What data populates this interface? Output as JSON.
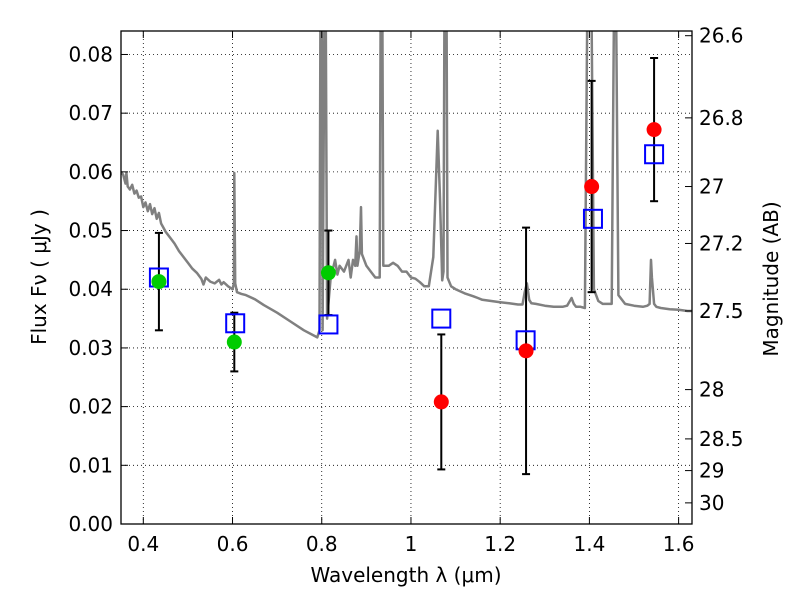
{
  "chart_data": {
    "type": "scatter",
    "title": "",
    "xlabel": "Wavelength  λ (μm)",
    "ylabel": "Flux  Fν  ( μJy )",
    "ylabel_right": "Magnitude (AB)",
    "xlim": [
      0.35,
      1.63
    ],
    "ylim": [
      0.0,
      0.084
    ],
    "grid": true,
    "x_ticks": [
      0.4,
      0.6,
      0.8,
      1.0,
      1.2,
      1.4,
      1.6
    ],
    "x_tick_labels": [
      "0.4",
      "0.6",
      "0.8",
      "1",
      "1.2",
      "1.4",
      "1.6"
    ],
    "y_ticks": [
      0.0,
      0.01,
      0.02,
      0.03,
      0.04,
      0.05,
      0.06,
      0.07,
      0.08
    ],
    "y_tick_labels": [
      "0.00",
      "0.01",
      "0.02",
      "0.03",
      "0.04",
      "0.05",
      "0.06",
      "0.07",
      "0.08"
    ],
    "mag_ticks": [
      {
        "flux": 0.0832,
        "label": "26.6"
      },
      {
        "flux": 0.0692,
        "label": "26.8"
      },
      {
        "flux": 0.0575,
        "label": "27"
      },
      {
        "flux": 0.0478,
        "label": "27.2"
      },
      {
        "flux": 0.0363,
        "label": "27.5"
      },
      {
        "flux": 0.0229,
        "label": "28"
      },
      {
        "flux": 0.0145,
        "label": "28.5"
      },
      {
        "flux": 0.0091,
        "label": "29"
      },
      {
        "flux": 0.0036,
        "label": "30"
      }
    ],
    "series": [
      {
        "name": "model SED",
        "kind": "line",
        "color": "#808080",
        "points": [
          [
            0.35,
            0.06
          ],
          [
            0.355,
            0.0595
          ],
          [
            0.36,
            0.058
          ],
          [
            0.362,
            0.0598
          ],
          [
            0.365,
            0.0575
          ],
          [
            0.37,
            0.057
          ],
          [
            0.375,
            0.0578
          ],
          [
            0.38,
            0.0563
          ],
          [
            0.385,
            0.0568
          ],
          [
            0.39,
            0.0556
          ],
          [
            0.395,
            0.0558
          ],
          [
            0.4,
            0.054
          ],
          [
            0.405,
            0.0548
          ],
          [
            0.41,
            0.0533
          ],
          [
            0.415,
            0.0545
          ],
          [
            0.42,
            0.0528
          ],
          [
            0.425,
            0.0538
          ],
          [
            0.43,
            0.052
          ],
          [
            0.435,
            0.053
          ],
          [
            0.44,
            0.0512
          ],
          [
            0.445,
            0.0505
          ],
          [
            0.45,
            0.0498
          ],
          [
            0.46,
            0.0488
          ],
          [
            0.47,
            0.0478
          ],
          [
            0.48,
            0.0465
          ],
          [
            0.49,
            0.0455
          ],
          [
            0.5,
            0.0445
          ],
          [
            0.51,
            0.0435
          ],
          [
            0.52,
            0.0428
          ],
          [
            0.53,
            0.0418
          ],
          [
            0.535,
            0.0408
          ],
          [
            0.54,
            0.042
          ],
          [
            0.55,
            0.0413
          ],
          [
            0.56,
            0.041
          ],
          [
            0.57,
            0.0416
          ],
          [
            0.575,
            0.0408
          ],
          [
            0.58,
            0.0412
          ],
          [
            0.59,
            0.0405
          ],
          [
            0.6,
            0.04
          ],
          [
            0.603,
            0.041
          ],
          [
            0.604,
            0.0598
          ],
          [
            0.606,
            0.041
          ],
          [
            0.61,
            0.0395
          ],
          [
            0.62,
            0.0392
          ],
          [
            0.63,
            0.039
          ],
          [
            0.65,
            0.0383
          ],
          [
            0.67,
            0.0373
          ],
          [
            0.7,
            0.036
          ],
          [
            0.73,
            0.0345
          ],
          [
            0.76,
            0.033
          ],
          [
            0.78,
            0.0322
          ],
          [
            0.79,
            0.0318
          ],
          [
            0.795,
            0.033
          ],
          [
            0.797,
            0.086
          ],
          [
            0.8,
            0.086
          ],
          [
            0.802,
            0.033
          ],
          [
            0.806,
            0.086
          ],
          [
            0.809,
            0.086
          ],
          [
            0.812,
            0.035
          ],
          [
            0.82,
            0.042
          ],
          [
            0.83,
            0.045
          ],
          [
            0.835,
            0.0425
          ],
          [
            0.84,
            0.044
          ],
          [
            0.85,
            0.043
          ],
          [
            0.86,
            0.045
          ],
          [
            0.865,
            0.042
          ],
          [
            0.87,
            0.045
          ],
          [
            0.875,
            0.044
          ],
          [
            0.878,
            0.049
          ],
          [
            0.88,
            0.044
          ],
          [
            0.885,
            0.0465
          ],
          [
            0.888,
            0.054
          ],
          [
            0.89,
            0.046
          ],
          [
            0.9,
            0.044
          ],
          [
            0.91,
            0.043
          ],
          [
            0.92,
            0.042
          ],
          [
            0.93,
            0.042
          ],
          [
            0.932,
            0.086
          ],
          [
            0.936,
            0.086
          ],
          [
            0.938,
            0.044
          ],
          [
            0.95,
            0.044
          ],
          [
            0.96,
            0.0445
          ],
          [
            0.97,
            0.044
          ],
          [
            0.98,
            0.043
          ],
          [
            0.99,
            0.043
          ],
          [
            1.0,
            0.042
          ],
          [
            1.01,
            0.0418
          ],
          [
            1.02,
            0.0412
          ],
          [
            1.03,
            0.0405
          ],
          [
            1.04,
            0.0405
          ],
          [
            1.05,
            0.0455
          ],
          [
            1.06,
            0.067
          ],
          [
            1.065,
            0.0555
          ],
          [
            1.07,
            0.0415
          ],
          [
            1.073,
            0.043
          ],
          [
            1.075,
            0.086
          ],
          [
            1.08,
            0.086
          ],
          [
            1.082,
            0.042
          ],
          [
            1.09,
            0.0405
          ],
          [
            1.1,
            0.04
          ],
          [
            1.12,
            0.0393
          ],
          [
            1.14,
            0.0388
          ],
          [
            1.15,
            0.0385
          ],
          [
            1.16,
            0.0382
          ],
          [
            1.18,
            0.038
          ],
          [
            1.2,
            0.0378
          ],
          [
            1.22,
            0.0376
          ],
          [
            1.24,
            0.0374
          ],
          [
            1.25,
            0.0374
          ],
          [
            1.255,
            0.0395
          ],
          [
            1.26,
            0.041
          ],
          [
            1.265,
            0.0382
          ],
          [
            1.27,
            0.0376
          ],
          [
            1.28,
            0.0375
          ],
          [
            1.3,
            0.0372
          ],
          [
            1.32,
            0.037
          ],
          [
            1.34,
            0.037
          ],
          [
            1.35,
            0.0372
          ],
          [
            1.36,
            0.0385
          ],
          [
            1.365,
            0.0375
          ],
          [
            1.37,
            0.037
          ],
          [
            1.38,
            0.037
          ],
          [
            1.39,
            0.0368
          ],
          [
            1.395,
            0.086
          ],
          [
            1.405,
            0.086
          ],
          [
            1.41,
            0.04
          ],
          [
            1.42,
            0.038
          ],
          [
            1.43,
            0.0375
          ],
          [
            1.44,
            0.0375
          ],
          [
            1.45,
            0.0375
          ],
          [
            1.455,
            0.086
          ],
          [
            1.46,
            0.086
          ],
          [
            1.465,
            0.039
          ],
          [
            1.48,
            0.0375
          ],
          [
            1.5,
            0.0372
          ],
          [
            1.52,
            0.037
          ],
          [
            1.53,
            0.0372
          ],
          [
            1.535,
            0.0375
          ],
          [
            1.538,
            0.045
          ],
          [
            1.54,
            0.042
          ],
          [
            1.545,
            0.0375
          ],
          [
            1.55,
            0.037
          ],
          [
            1.56,
            0.0368
          ],
          [
            1.58,
            0.0366
          ],
          [
            1.6,
            0.0365
          ],
          [
            1.62,
            0.0363
          ],
          [
            1.63,
            0.0363
          ]
        ]
      },
      {
        "name": "model photometry",
        "kind": "open-square",
        "color": "#0000ff",
        "points": [
          [
            0.435,
            0.042
          ],
          [
            0.606,
            0.0342
          ],
          [
            0.815,
            0.034
          ],
          [
            1.068,
            0.035
          ],
          [
            1.257,
            0.0313
          ],
          [
            1.408,
            0.052
          ],
          [
            1.545,
            0.063
          ]
        ]
      },
      {
        "name": "observed (green)",
        "kind": "filled-circle",
        "color": "#00cc00",
        "points": [
          [
            0.435,
            0.0413
          ],
          [
            0.604,
            0.031
          ],
          [
            0.815,
            0.0428
          ]
        ],
        "errors": [
          0.0083,
          0.005,
          0.0072
        ]
      },
      {
        "name": "observed (red)",
        "kind": "filled-circle",
        "color": "#ff0000",
        "points": [
          [
            1.068,
            0.0208
          ],
          [
            1.258,
            0.0295
          ],
          [
            1.405,
            0.0575
          ],
          [
            1.545,
            0.0672
          ]
        ],
        "errors": [
          0.0115,
          0.021,
          0.018,
          0.0122
        ]
      }
    ]
  }
}
